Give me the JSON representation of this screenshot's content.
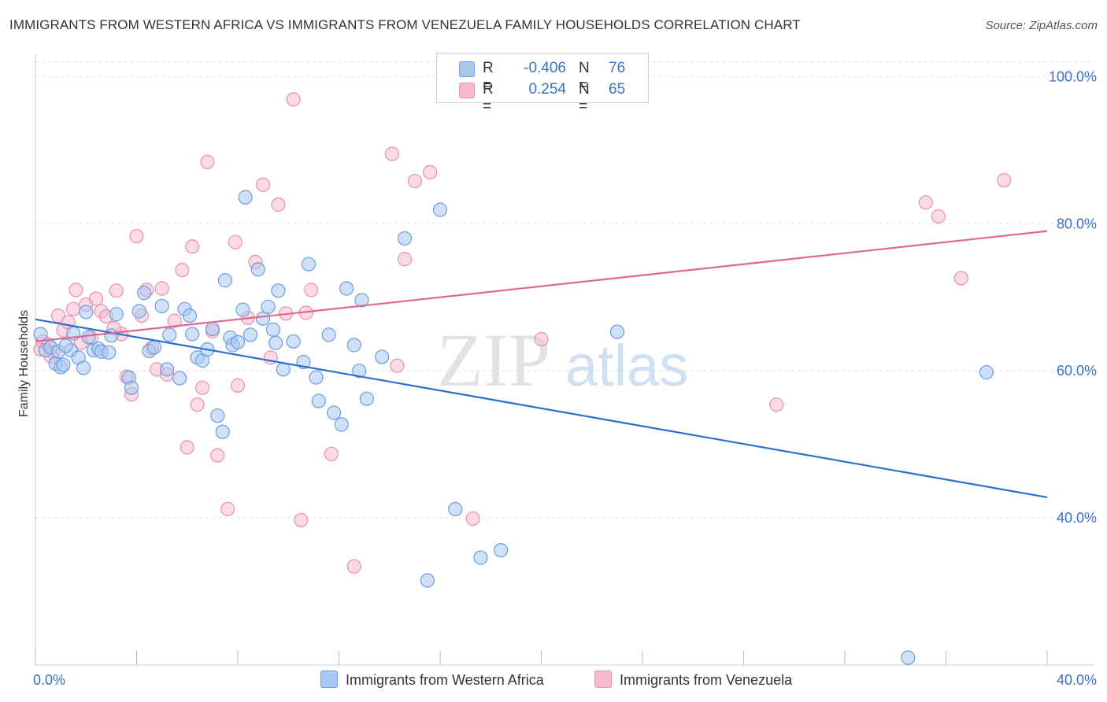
{
  "header": {
    "title": "IMMIGRANTS FROM WESTERN AFRICA VS IMMIGRANTS FROM VENEZUELA FAMILY HOUSEHOLDS CORRELATION CHART",
    "source": "Source: ZipAtlas.com"
  },
  "legend": {
    "r_label": "R =",
    "n_label": "N =",
    "rows": [
      {
        "r": "-0.406",
        "n": "76"
      },
      {
        "r": "0.254",
        "n": "65"
      }
    ]
  },
  "bottom_legend": {
    "series1": "Immigrants from Western Africa",
    "series2": "Immigrants from Venezuela"
  },
  "colors": {
    "blue_fill": "#a9c8f0",
    "blue_stroke": "#6a9ee0",
    "blue_line": "#2b6fd0",
    "pink_fill": "#f6bccd",
    "pink_stroke": "#ea90ac",
    "pink_line": "#e0678f",
    "tick_text": "#3a72c8",
    "grid": "#dddddd"
  },
  "chart_data": {
    "type": "scatter",
    "title": "IMMIGRANTS FROM WESTERN AFRICA VS IMMIGRANTS FROM VENEZUELA FAMILY HOUSEHOLDS CORRELATION CHART",
    "xlabel": "",
    "ylabel": "Family Households",
    "xlim": [
      0,
      40
    ],
    "ylim": [
      20,
      104
    ],
    "x_tick_labels": [
      "0.0%",
      "40.0%"
    ],
    "y_ticks": [
      40,
      60,
      80,
      100
    ],
    "y_tick_labels": [
      "40.0%",
      "60.0%",
      "80.0%",
      "100.0%"
    ],
    "grid": true,
    "watermark": {
      "zip": "ZIP",
      "atlas": "atlas"
    },
    "series": [
      {
        "name": "Immigrants from Western Africa",
        "color": "blue",
        "trend": {
          "x": [
            0,
            40
          ],
          "y": [
            67.0,
            42.8
          ]
        },
        "points": [
          [
            0.2,
            65.0
          ],
          [
            0.4,
            62.8
          ],
          [
            0.6,
            63.2
          ],
          [
            0.8,
            61.0
          ],
          [
            0.9,
            62.6
          ],
          [
            1.0,
            60.5
          ],
          [
            1.1,
            60.8
          ],
          [
            1.4,
            62.8
          ],
          [
            1.5,
            65.1
          ],
          [
            1.7,
            61.8
          ],
          [
            1.9,
            60.4
          ],
          [
            2.0,
            68.0
          ],
          [
            2.1,
            64.6
          ],
          [
            2.3,
            62.8
          ],
          [
            2.5,
            63.0
          ],
          [
            2.6,
            62.6
          ],
          [
            2.9,
            62.5
          ],
          [
            3.0,
            64.8
          ],
          [
            3.2,
            67.7
          ],
          [
            3.7,
            59.1
          ],
          [
            3.8,
            57.7
          ],
          [
            4.1,
            68.1
          ],
          [
            4.3,
            70.6
          ],
          [
            4.5,
            62.7
          ],
          [
            4.7,
            63.2
          ],
          [
            5.0,
            68.8
          ],
          [
            5.3,
            64.9
          ],
          [
            5.2,
            60.2
          ],
          [
            5.7,
            59.0
          ],
          [
            5.9,
            68.4
          ],
          [
            6.1,
            67.5
          ],
          [
            6.2,
            65.0
          ],
          [
            6.4,
            61.8
          ],
          [
            6.6,
            61.4
          ],
          [
            6.8,
            62.9
          ],
          [
            7.0,
            65.7
          ],
          [
            7.2,
            53.9
          ],
          [
            7.4,
            51.7
          ],
          [
            7.5,
            72.3
          ],
          [
            7.7,
            64.5
          ],
          [
            7.8,
            63.5
          ],
          [
            8.0,
            63.9
          ],
          [
            8.2,
            68.3
          ],
          [
            8.3,
            83.6
          ],
          [
            8.5,
            64.9
          ],
          [
            8.8,
            73.8
          ],
          [
            9.0,
            67.1
          ],
          [
            9.2,
            68.7
          ],
          [
            9.4,
            65.6
          ],
          [
            9.5,
            63.8
          ],
          [
            9.6,
            70.9
          ],
          [
            9.8,
            60.2
          ],
          [
            10.2,
            64.0
          ],
          [
            10.6,
            61.2
          ],
          [
            10.8,
            74.5
          ],
          [
            11.1,
            59.1
          ],
          [
            11.2,
            55.9
          ],
          [
            11.6,
            64.9
          ],
          [
            11.8,
            54.3
          ],
          [
            12.1,
            52.7
          ],
          [
            12.3,
            71.2
          ],
          [
            12.6,
            63.5
          ],
          [
            12.8,
            60.0
          ],
          [
            12.9,
            69.6
          ],
          [
            13.1,
            56.2
          ],
          [
            13.7,
            61.9
          ],
          [
            14.6,
            78.0
          ],
          [
            15.5,
            31.5
          ],
          [
            16.0,
            81.9
          ],
          [
            16.6,
            41.2
          ],
          [
            17.6,
            34.6
          ],
          [
            18.4,
            35.6
          ],
          [
            23.0,
            65.3
          ],
          [
            37.6,
            59.8
          ],
          [
            34.5,
            21.0
          ],
          [
            1.2,
            63.4
          ]
        ]
      },
      {
        "name": "Immigrants from Venezuela",
        "color": "pink",
        "trend": {
          "x": [
            0,
            40
          ],
          "y": [
            64.0,
            79.0
          ]
        },
        "points": [
          [
            0.2,
            62.9
          ],
          [
            0.3,
            64.0
          ],
          [
            0.5,
            63.6
          ],
          [
            0.7,
            62.5
          ],
          [
            0.9,
            67.5
          ],
          [
            1.1,
            65.5
          ],
          [
            1.3,
            66.6
          ],
          [
            1.5,
            68.4
          ],
          [
            1.6,
            71.0
          ],
          [
            2.0,
            69.0
          ],
          [
            2.2,
            64.5
          ],
          [
            2.4,
            69.8
          ],
          [
            2.6,
            68.1
          ],
          [
            2.8,
            67.4
          ],
          [
            3.2,
            70.9
          ],
          [
            3.4,
            65.0
          ],
          [
            3.6,
            59.2
          ],
          [
            3.8,
            56.8
          ],
          [
            4.0,
            78.3
          ],
          [
            4.2,
            67.5
          ],
          [
            4.4,
            71.0
          ],
          [
            4.6,
            63.1
          ],
          [
            4.8,
            60.2
          ],
          [
            5.0,
            71.2
          ],
          [
            5.2,
            59.5
          ],
          [
            5.5,
            66.8
          ],
          [
            5.8,
            73.7
          ],
          [
            6.0,
            49.6
          ],
          [
            6.2,
            76.9
          ],
          [
            6.4,
            55.4
          ],
          [
            6.6,
            57.7
          ],
          [
            6.8,
            88.4
          ],
          [
            7.0,
            65.4
          ],
          [
            7.2,
            48.5
          ],
          [
            7.6,
            41.2
          ],
          [
            7.9,
            77.5
          ],
          [
            8.0,
            58.0
          ],
          [
            8.4,
            67.2
          ],
          [
            8.7,
            74.8
          ],
          [
            9.0,
            85.3
          ],
          [
            9.3,
            61.8
          ],
          [
            9.6,
            82.6
          ],
          [
            9.9,
            67.8
          ],
          [
            10.2,
            96.9
          ],
          [
            10.5,
            39.7
          ],
          [
            10.7,
            67.9
          ],
          [
            10.9,
            71.0
          ],
          [
            11.7,
            48.7
          ],
          [
            12.6,
            33.4
          ],
          [
            14.1,
            89.5
          ],
          [
            14.3,
            60.7
          ],
          [
            14.6,
            75.2
          ],
          [
            15.0,
            85.8
          ],
          [
            15.6,
            87.0
          ],
          [
            17.3,
            39.9
          ],
          [
            20.0,
            64.3
          ],
          [
            22.1,
            100.0
          ],
          [
            29.3,
            55.4
          ],
          [
            35.2,
            82.9
          ],
          [
            35.7,
            81.0
          ],
          [
            36.6,
            72.6
          ],
          [
            38.3,
            85.9
          ],
          [
            1.8,
            63.8
          ],
          [
            3.1,
            65.8
          ],
          [
            0.6,
            62.0
          ]
        ]
      }
    ]
  }
}
